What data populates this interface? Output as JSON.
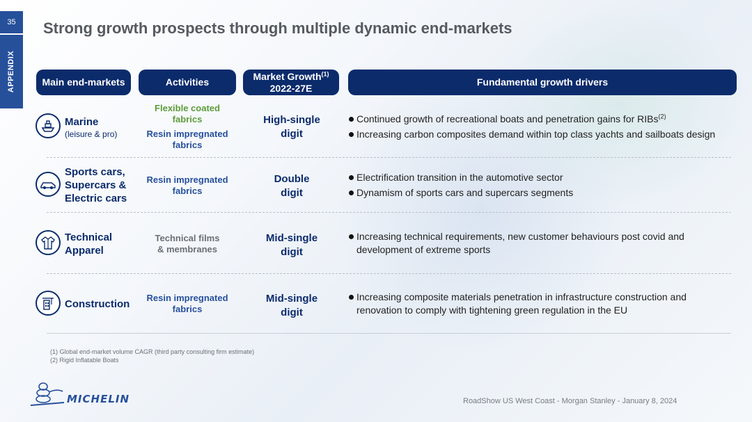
{
  "page_number": "35",
  "side_tab": "APPENDIX",
  "title": "Strong growth prospects through multiple dynamic end-markets",
  "headers": {
    "main_end_markets": "Main end-markets",
    "activities": "Activities",
    "market_growth": "Market Growth",
    "market_growth_sup": "(1)",
    "market_growth_period": "2022-27E",
    "drivers": "Fundamental growth drivers"
  },
  "rows": [
    {
      "icon": "boat-icon",
      "market_line1": "Marine",
      "market_sub": "(leisure & pro)",
      "activities": [
        {
          "text_line1": "Flexible coated",
          "text_line2": "fabrics",
          "color": "#5e9c3a"
        },
        {
          "text_line1": "Resin impregnated",
          "text_line2": "fabrics",
          "color": "#27509b"
        }
      ],
      "growth_line1": "High-single",
      "growth_line2": "digit",
      "drivers": [
        {
          "text": "Continued growth of recreational boats and penetration gains for RIBs",
          "sup": "(2)"
        },
        {
          "text": "Increasing carbon composites demand within top class yachts and sailboats design"
        }
      ]
    },
    {
      "icon": "sports-car-icon",
      "market_line1": "Sports cars,",
      "market_line2": "Supercars &",
      "market_line3": "Electric cars",
      "activities": [
        {
          "text_line1": "Resin impregnated",
          "text_line2": "fabrics",
          "color": "#27509b"
        }
      ],
      "growth_line1": "Double",
      "growth_line2": "digit",
      "drivers": [
        {
          "text": "Electrification transition in the automotive sector"
        },
        {
          "text": "Dynamism of sports cars and supercars segments"
        }
      ]
    },
    {
      "icon": "jacket-icon",
      "market_line1": "Technical",
      "market_line2": "Apparel",
      "activities": [
        {
          "text_line1": "Technical films",
          "text_line2": "& membranes",
          "color": "#6b7076"
        }
      ],
      "growth_line1": "Mid-single",
      "growth_line2": "digit",
      "drivers": [
        {
          "text_line1": "Increasing technical requirements, new customer behaviours post covid and",
          "text_line2": "development of extreme sports"
        }
      ]
    },
    {
      "icon": "construction-icon",
      "market_line1": "Construction",
      "activities": [
        {
          "text_line1": "Resin impregnated",
          "text_line2": "fabrics",
          "color": "#27509b"
        }
      ],
      "growth_line1": "Mid-single",
      "growth_line2": "digit",
      "drivers": [
        {
          "text_line1": "Increasing composite materials penetration in infrastructure construction and",
          "text_line2": "renovation to comply with tightening green regulation in the EU"
        }
      ]
    }
  ],
  "footnotes": [
    "(1) Global end-market volume CAGR (third party consulting firm estimate)",
    "(2) Rigid Inflatable Boats"
  ],
  "logo_text": "MICHELIN",
  "footer": "RoadShow US West Coast - Morgan Stanley - January 8, 2024",
  "colors": {
    "brand_blue": "#27509b",
    "header_navy": "#0b2b6b",
    "green": "#5e9c3a",
    "gray": "#6b7076"
  }
}
